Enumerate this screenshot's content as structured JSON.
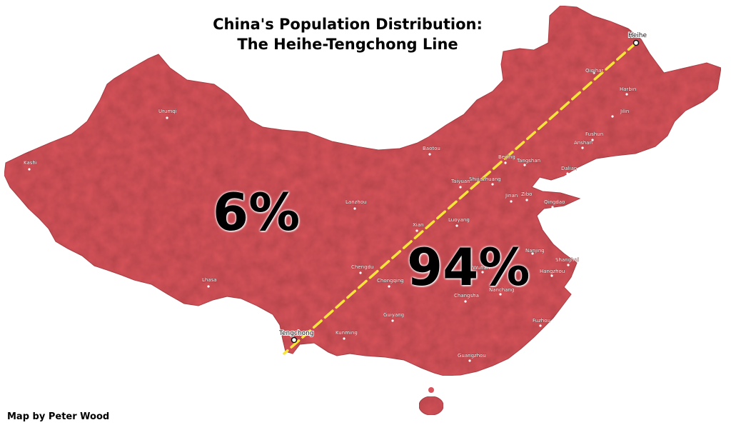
{
  "title": {
    "line1": "China's Population Distribution:",
    "line2": "The Heihe-Tengchong Line"
  },
  "credit": "Map by Peter Wood",
  "shares": {
    "west": "6%",
    "east": "94%"
  },
  "colors": {
    "land": "#d9545c",
    "land_shadow": "#a83a42",
    "line": "#f7e53b",
    "background": "#ffffff"
  },
  "line_endpoints": {
    "north": "Heihe",
    "south": "Tengchong"
  },
  "cities": [
    {
      "name": "Urumqi",
      "id": "urumqi"
    },
    {
      "name": "Kashi",
      "id": "kashi"
    },
    {
      "name": "Lanzhou",
      "id": "lanzhou"
    },
    {
      "name": "Lhasa",
      "id": "lhasa"
    },
    {
      "name": "Chengdu",
      "id": "chengdu"
    },
    {
      "name": "Chongqing",
      "id": "chongqing"
    },
    {
      "name": "Guiyang",
      "id": "guiyang"
    },
    {
      "name": "Kunming",
      "id": "kunming"
    },
    {
      "name": "Xian",
      "id": "xian"
    },
    {
      "name": "Luoyang",
      "id": "luoyang"
    },
    {
      "name": "Taiyuan",
      "id": "taiyuan"
    },
    {
      "name": "Shijiazhuang",
      "id": "shijiazhuang"
    },
    {
      "name": "Baotou",
      "id": "baotou"
    },
    {
      "name": "Beijing",
      "id": "beijing"
    },
    {
      "name": "Tangshan",
      "id": "tangshan"
    },
    {
      "name": "Jinan",
      "id": "jinan"
    },
    {
      "name": "Zibo",
      "id": "zibo"
    },
    {
      "name": "Qingdao",
      "id": "qingdao"
    },
    {
      "name": "Dalian",
      "id": "dalian"
    },
    {
      "name": "Anshan",
      "id": "anshan"
    },
    {
      "name": "Fushun",
      "id": "fushun"
    },
    {
      "name": "Jilin",
      "id": "jilin"
    },
    {
      "name": "Harbin",
      "id": "harbin"
    },
    {
      "name": "Qiqihar",
      "id": "qiqihar"
    },
    {
      "name": "Nanjing",
      "id": "nanjing"
    },
    {
      "name": "Shanghai",
      "id": "shanghai"
    },
    {
      "name": "Hangzhou",
      "id": "hangzhou"
    },
    {
      "name": "Wuhan",
      "id": "wuhan"
    },
    {
      "name": "Changsha",
      "id": "changsha"
    },
    {
      "name": "Nanchang",
      "id": "nanchang"
    },
    {
      "name": "Fuzhou",
      "id": "fuzhou"
    },
    {
      "name": "Guangzhou",
      "id": "guangzhou"
    }
  ]
}
